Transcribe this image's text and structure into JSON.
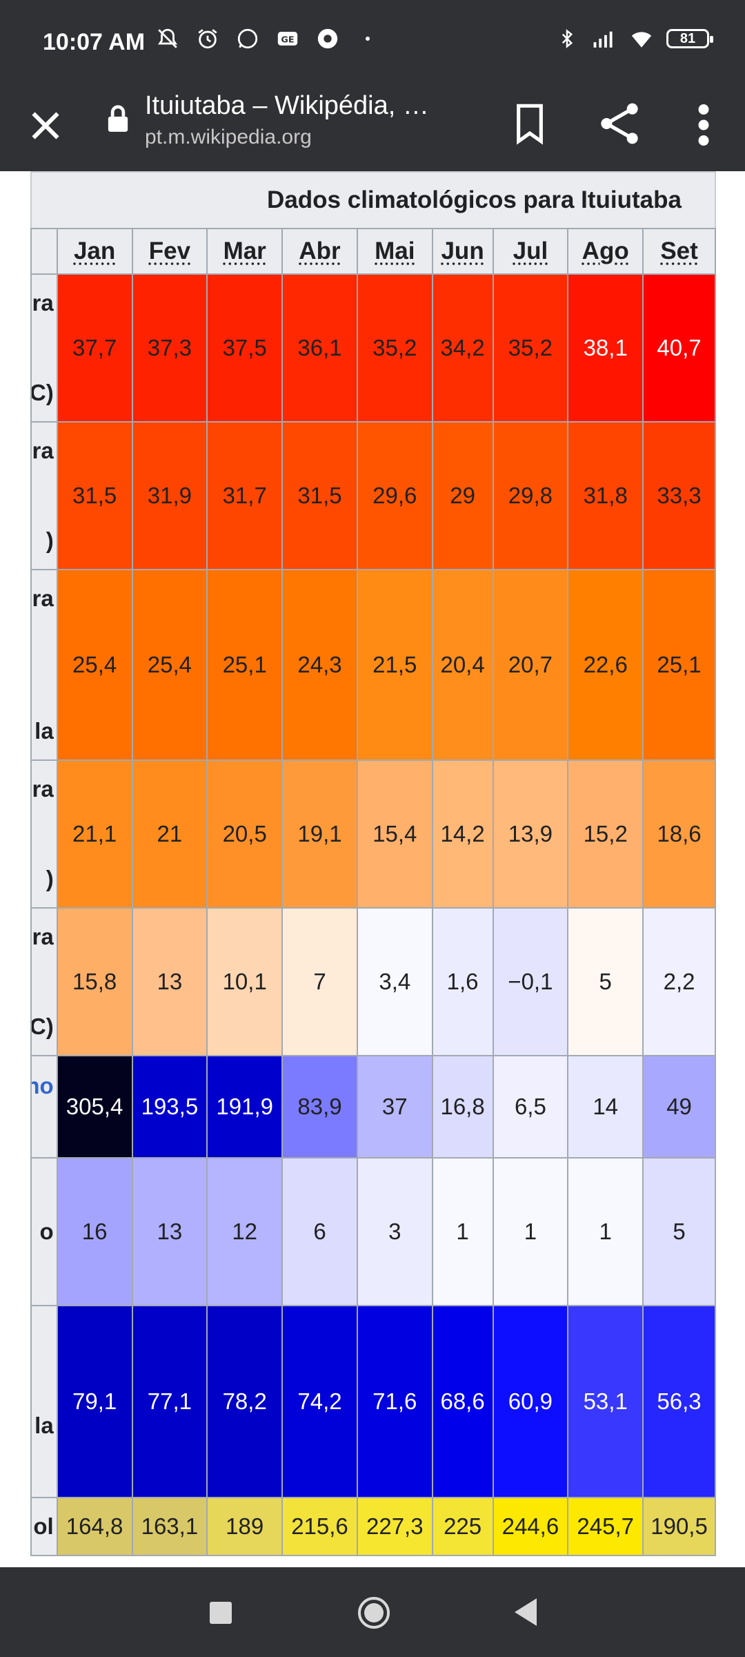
{
  "status_bar": {
    "time": "10:07 AM",
    "battery": "81"
  },
  "browser": {
    "page_title": "Ituiutaba – Wikipédia, …",
    "host": "pt.m.wikipedia.org"
  },
  "table": {
    "caption": "Dados climatológicos para Ituiutaba",
    "months": [
      "Jan",
      "Fev",
      "Mar",
      "Abr",
      "Mai",
      "Jun",
      "Jul",
      "Ago",
      "Set"
    ],
    "rows": [
      {
        "label_top": "ra",
        "label_bottom": "C)",
        "label_color": "#202122",
        "values": [
          "37,7",
          "37,3",
          "37,5",
          "36,1",
          "35,2",
          "34,2",
          "35,2",
          "38,1",
          "40,7"
        ],
        "colors": [
          "#ff2200",
          "#ff2200",
          "#ff2200",
          "#ff2800",
          "#ff2a00",
          "#ff2e00",
          "#ff2a00",
          "#ff1500",
          "#ff0000"
        ]
      },
      {
        "label_top": "ra",
        "label_bottom": ")",
        "label_color": "#202122",
        "values": [
          "31,5",
          "31,9",
          "31,7",
          "31,5",
          "29,6",
          "29",
          "29,8",
          "31,8",
          "33,3"
        ],
        "colors": [
          "#ff4800",
          "#ff4400",
          "#ff4600",
          "#ff4800",
          "#ff5400",
          "#ff5800",
          "#ff5200",
          "#ff4500",
          "#ff3c00"
        ]
      },
      {
        "label_top": "ra",
        "label_bottom": "la",
        "label_color": "#202122",
        "values": [
          "25,4",
          "25,4",
          "25,1",
          "24,3",
          "21,5",
          "20,4",
          "20,7",
          "22,6",
          "25,1"
        ],
        "colors": [
          "#ff7000",
          "#ff7000",
          "#ff7200",
          "#ff7600",
          "#ff8a14",
          "#ff8e1c",
          "#ff8c1a",
          "#ff8000",
          "#ff7200"
        ]
      },
      {
        "label_top": "ra",
        "label_bottom": ")",
        "label_color": "#202122",
        "values": [
          "21,1",
          "21",
          "20,5",
          "19,1",
          "15,4",
          "14,2",
          "13,9",
          "15,2",
          "18,6"
        ],
        "colors": [
          "#ff8c1c",
          "#ff8c1c",
          "#ff9028",
          "#ff9a3a",
          "#ffb06a",
          "#ffb876",
          "#ffb97a",
          "#ffb06c",
          "#ff9c3e"
        ]
      },
      {
        "label_top": "ra",
        "label_bottom": "C)",
        "label_color": "#202122",
        "values": [
          "15,8",
          "13",
          "10,1",
          "7",
          "3,4",
          "1,6",
          "−0,1",
          "5",
          "2,2"
        ],
        "colors": [
          "#ffae66",
          "#ffc08c",
          "#ffd6b2",
          "#ffecd8",
          "#f8f8ff",
          "#ececff",
          "#e4e4ff",
          "#fff8f2",
          "#f0f0ff"
        ]
      },
      {
        "label_top": "",
        "label_bottom": "",
        "label_mid": "no",
        "label_color": "#3366cc",
        "values": [
          "305,4",
          "193,5",
          "191,9",
          "83,9",
          "37",
          "16,8",
          "6,5",
          "14",
          "49"
        ],
        "colors": [
          "#02021e",
          "#0000cc",
          "#0000cc",
          "#7b7bff",
          "#b8b8ff",
          "#dcdcff",
          "#f0f0ff",
          "#e8e8ff",
          "#a8a8ff"
        ],
        "white_text": [
          true,
          true,
          true,
          false,
          false,
          false,
          false,
          false,
          false
        ]
      },
      {
        "label_top": "",
        "label_bottom": "",
        "label_mid": "o",
        "label_color": "#202122",
        "values": [
          "16",
          "13",
          "12",
          "6",
          "3",
          "1",
          "1",
          "1",
          "5"
        ],
        "colors": [
          "#a4a4ff",
          "#b0b0ff",
          "#b4b4ff",
          "#dcdcff",
          "#ececff",
          "#f8f8ff",
          "#f8f8ff",
          "#f8f8ff",
          "#dedeff"
        ]
      },
      {
        "label_top": "",
        "label_bottom": "la",
        "label_color": "#202122",
        "values": [
          "79,1",
          "77,1",
          "78,2",
          "74,2",
          "71,6",
          "68,6",
          "60,9",
          "53,1",
          "56,3"
        ],
        "colors": [
          "#0000c4",
          "#0000c8",
          "#0000c6",
          "#0000d8",
          "#0000e0",
          "#0000ea",
          "#0d0dff",
          "#3838ff",
          "#2626ff"
        ],
        "white_text": [
          true,
          true,
          true,
          true,
          true,
          true,
          true,
          true,
          true
        ]
      },
      {
        "label_top": "",
        "label_bottom": "",
        "label_mid": "ol",
        "label_color": "#202122",
        "values": [
          "164,8",
          "163,1",
          "189",
          "215,6",
          "227,3",
          "225",
          "244,6",
          "245,7",
          "190,5"
        ],
        "colors": [
          "#d8c868",
          "#d8c868",
          "#e6d65a",
          "#f2e23a",
          "#f6e630",
          "#f4e434",
          "#fce800",
          "#fce800",
          "#e6d65a"
        ]
      }
    ]
  }
}
